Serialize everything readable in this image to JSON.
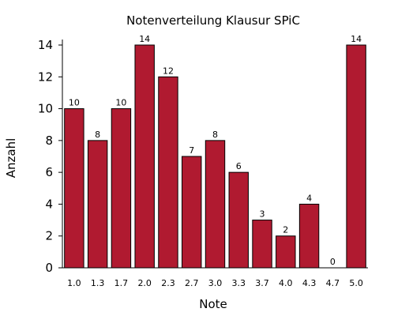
{
  "chart_data": {
    "type": "bar",
    "title": "Notenverteilung Klausur SPiC",
    "xlabel": "Note",
    "ylabel": "Anzahl",
    "categories": [
      "1.0",
      "1.3",
      "1.7",
      "2.0",
      "2.3",
      "2.7",
      "3.0",
      "3.3",
      "3.7",
      "4.0",
      "4.3",
      "4.7",
      "5.0"
    ],
    "values": [
      10,
      8,
      10,
      14,
      12,
      7,
      8,
      6,
      3,
      2,
      4,
      0,
      14
    ],
    "data_labels": [
      "10",
      "8",
      "10",
      "14",
      "12",
      "7",
      "8",
      "6",
      "3",
      "2",
      "4",
      "0",
      "14"
    ],
    "ylim": [
      0,
      14
    ],
    "yticks": [
      "0",
      "2",
      "4",
      "6",
      "8",
      "10",
      "12",
      "14"
    ],
    "bar_color": "#b01a30",
    "grid": false,
    "legend": "none"
  }
}
